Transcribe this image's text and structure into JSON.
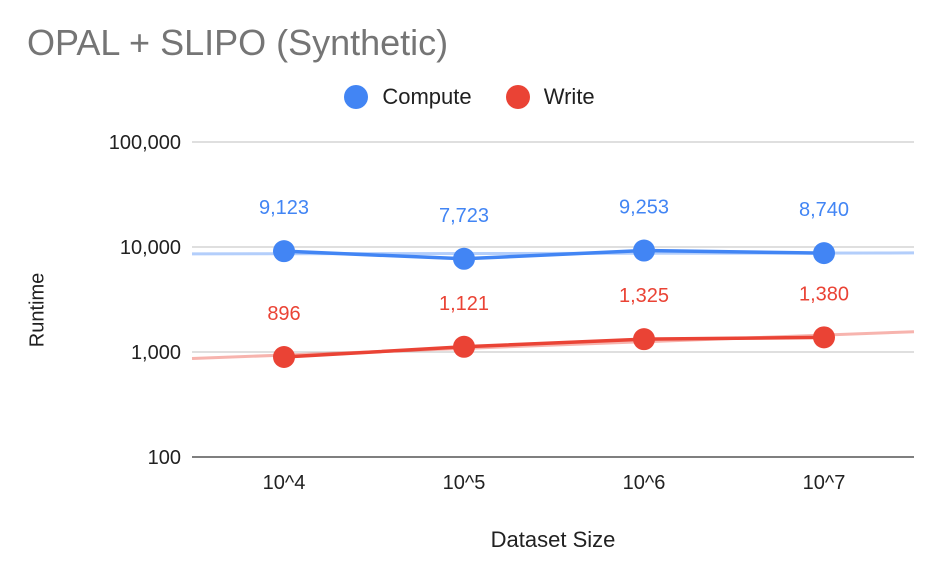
{
  "chart_data": {
    "type": "line",
    "title": "OPAL + SLIPO (Synthetic)",
    "xlabel": "Dataset Size",
    "ylabel": "Runtime",
    "yscale": "log",
    "ylim": [
      100,
      100000
    ],
    "yticks": [
      100,
      1000,
      10000,
      100000
    ],
    "ytick_labels": [
      "100",
      "1,000",
      "10,000",
      "100,000"
    ],
    "categories": [
      "10^4",
      "10^5",
      "10^6",
      "10^7"
    ],
    "legend_position": "top",
    "grid": true,
    "trendlines": true,
    "series": [
      {
        "name": "Compute",
        "color": "#4285F4",
        "values": [
          9123,
          7723,
          9253,
          8740
        ],
        "labels": [
          "9,123",
          "7,723",
          "9,253",
          "8,740"
        ]
      },
      {
        "name": "Write",
        "color": "#EA4335",
        "values": [
          896,
          1121,
          1325,
          1380
        ],
        "labels": [
          "896",
          "1,121",
          "1,325",
          "1,380"
        ]
      }
    ]
  }
}
